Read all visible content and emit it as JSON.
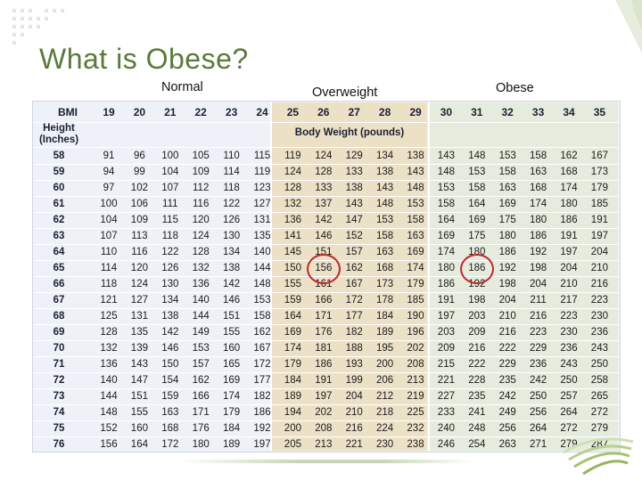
{
  "slide": {
    "title": "What is Obese?",
    "labels": {
      "normal": "Normal",
      "overweight": "Overweight",
      "obese": "Obese"
    }
  },
  "table": {
    "bmi_label": "BMI",
    "height_label_line1": "Height",
    "height_label_line2": "(Inches)",
    "body_weight_label": "Body Weight (pounds)",
    "bmi_values": [
      "19",
      "20",
      "21",
      "22",
      "23",
      "24",
      "25",
      "26",
      "27",
      "28",
      "29",
      "30",
      "31",
      "32",
      "33",
      "34",
      "35"
    ],
    "rows": [
      {
        "h": "58",
        "w": [
          "91",
          "96",
          "100",
          "105",
          "110",
          "115",
          "119",
          "124",
          "129",
          "134",
          "138",
          "143",
          "148",
          "153",
          "158",
          "162",
          "167"
        ]
      },
      {
        "h": "59",
        "w": [
          "94",
          "99",
          "104",
          "109",
          "114",
          "119",
          "124",
          "128",
          "133",
          "138",
          "143",
          "148",
          "153",
          "158",
          "163",
          "168",
          "173"
        ]
      },
      {
        "h": "60",
        "w": [
          "97",
          "102",
          "107",
          "112",
          "118",
          "123",
          "128",
          "133",
          "138",
          "143",
          "148",
          "153",
          "158",
          "163",
          "168",
          "174",
          "179"
        ]
      },
      {
        "h": "61",
        "w": [
          "100",
          "106",
          "111",
          "116",
          "122",
          "127",
          "132",
          "137",
          "143",
          "148",
          "153",
          "158",
          "164",
          "169",
          "174",
          "180",
          "185"
        ]
      },
      {
        "h": "62",
        "w": [
          "104",
          "109",
          "115",
          "120",
          "126",
          "131",
          "136",
          "142",
          "147",
          "153",
          "158",
          "164",
          "169",
          "175",
          "180",
          "186",
          "191"
        ]
      },
      {
        "h": "63",
        "w": [
          "107",
          "113",
          "118",
          "124",
          "130",
          "135",
          "141",
          "146",
          "152",
          "158",
          "163",
          "169",
          "175",
          "180",
          "186",
          "191",
          "197"
        ]
      },
      {
        "h": "64",
        "w": [
          "110",
          "116",
          "122",
          "128",
          "134",
          "140",
          "145",
          "151",
          "157",
          "163",
          "169",
          "174",
          "180",
          "186",
          "192",
          "197",
          "204"
        ]
      },
      {
        "h": "65",
        "w": [
          "114",
          "120",
          "126",
          "132",
          "138",
          "144",
          "150",
          "156",
          "162",
          "168",
          "174",
          "180",
          "186",
          "192",
          "198",
          "204",
          "210"
        ]
      },
      {
        "h": "66",
        "w": [
          "118",
          "124",
          "130",
          "136",
          "142",
          "148",
          "155",
          "161",
          "167",
          "173",
          "179",
          "186",
          "192",
          "198",
          "204",
          "210",
          "216"
        ]
      },
      {
        "h": "67",
        "w": [
          "121",
          "127",
          "134",
          "140",
          "146",
          "153",
          "159",
          "166",
          "172",
          "178",
          "185",
          "191",
          "198",
          "204",
          "211",
          "217",
          "223"
        ]
      },
      {
        "h": "68",
        "w": [
          "125",
          "131",
          "138",
          "144",
          "151",
          "158",
          "164",
          "171",
          "177",
          "184",
          "190",
          "197",
          "203",
          "210",
          "216",
          "223",
          "230"
        ]
      },
      {
        "h": "69",
        "w": [
          "128",
          "135",
          "142",
          "149",
          "155",
          "162",
          "169",
          "176",
          "182",
          "189",
          "196",
          "203",
          "209",
          "216",
          "223",
          "230",
          "236"
        ]
      },
      {
        "h": "70",
        "w": [
          "132",
          "139",
          "146",
          "153",
          "160",
          "167",
          "174",
          "181",
          "188",
          "195",
          "202",
          "209",
          "216",
          "222",
          "229",
          "236",
          "243"
        ]
      },
      {
        "h": "71",
        "w": [
          "136",
          "143",
          "150",
          "157",
          "165",
          "172",
          "179",
          "186",
          "193",
          "200",
          "208",
          "215",
          "222",
          "229",
          "236",
          "243",
          "250"
        ]
      },
      {
        "h": "72",
        "w": [
          "140",
          "147",
          "154",
          "162",
          "169",
          "177",
          "184",
          "191",
          "199",
          "206",
          "213",
          "221",
          "228",
          "235",
          "242",
          "250",
          "258"
        ]
      },
      {
        "h": "73",
        "w": [
          "144",
          "151",
          "159",
          "166",
          "174",
          "182",
          "189",
          "197",
          "204",
          "212",
          "219",
          "227",
          "235",
          "242",
          "250",
          "257",
          "265"
        ]
      },
      {
        "h": "74",
        "w": [
          "148",
          "155",
          "163",
          "171",
          "179",
          "186",
          "194",
          "202",
          "210",
          "218",
          "225",
          "233",
          "241",
          "249",
          "256",
          "264",
          "272"
        ]
      },
      {
        "h": "75",
        "w": [
          "152",
          "160",
          "168",
          "176",
          "184",
          "192",
          "200",
          "208",
          "216",
          "224",
          "232",
          "240",
          "248",
          "256",
          "264",
          "272",
          "279"
        ]
      },
      {
        "h": "76",
        "w": [
          "156",
          "164",
          "172",
          "180",
          "189",
          "197",
          "205",
          "213",
          "221",
          "230",
          "238",
          "246",
          "254",
          "263",
          "271",
          "279",
          "287"
        ]
      }
    ]
  },
  "highlights": [
    {
      "row": 7,
      "col": 7,
      "value": "156"
    },
    {
      "row": 7,
      "col": 12,
      "value": "186"
    }
  ],
  "colors": {
    "title": "#5a7a3a",
    "overweight_band": "#ece1c6",
    "obese_band": "#e6ecdd",
    "normal_band": "#eef2f8",
    "circle": "#c0272d"
  }
}
